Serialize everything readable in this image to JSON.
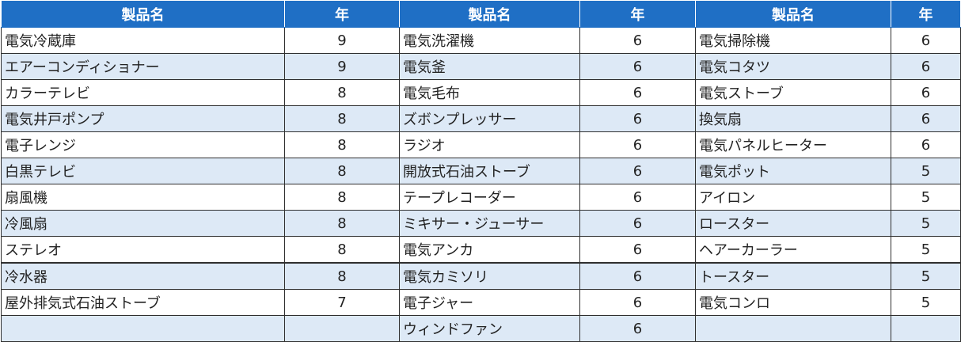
{
  "headers": [
    "製品名",
    "年",
    "製品名",
    "年",
    "製品名",
    "年"
  ],
  "rows": [
    [
      "電気冷蔵庫",
      "9",
      "電気洗濯機",
      "6",
      "電気掃除機",
      "6"
    ],
    [
      "エアーコンディショナー",
      "9",
      "電気釜",
      "6",
      "電気コタツ",
      "6"
    ],
    [
      "カラーテレビ",
      "8",
      "電気毛布",
      "6",
      "電気ストーブ",
      "6"
    ],
    [
      "電気井戸ポンプ",
      "8",
      "ズボンプレッサー",
      "6",
      "換気扇",
      "6"
    ],
    [
      "電子レンジ",
      "8",
      "ラジオ",
      "6",
      "電気パネルヒーター",
      "6"
    ],
    [
      "白黒テレビ",
      "8",
      "開放式石油ストーブ",
      "6",
      "電気ポット",
      "5"
    ],
    [
      "扇風機",
      "8",
      "テープレコーダー",
      "6",
      "アイロン",
      "5"
    ],
    [
      "冷風扇",
      "8",
      "ミキサー・ジューサー",
      "6",
      "ロースター",
      "5"
    ],
    [
      "ステレオ",
      "8",
      "電気アンカ",
      "6",
      "ヘアーカーラー",
      "5"
    ],
    [
      "冷水器",
      "8",
      "電気カミソリ",
      "6",
      "トースター",
      "5"
    ],
    [
      "屋外排気式石油ストーブ",
      "7",
      "電子ジャー",
      "6",
      "電気コンロ",
      "5"
    ],
    [
      "",
      "",
      "ウィンドファン",
      "6",
      "",
      ""
    ]
  ],
  "colors": {
    "header_bg": "#1f6fc5",
    "header_text": "#ffffff",
    "stripe_bg": "#dde9f6",
    "border": "#2f2f2f"
  }
}
